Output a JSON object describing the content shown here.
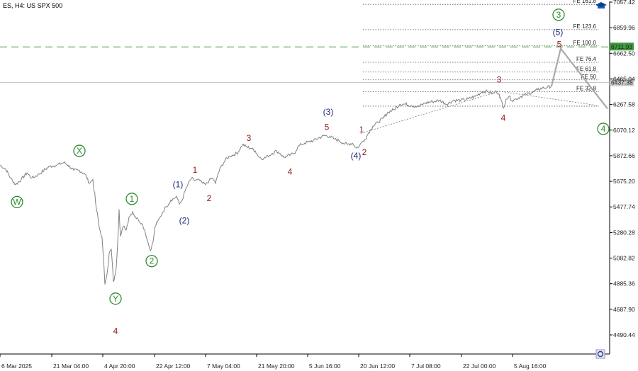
{
  "header": {
    "symbol": "ES",
    "timeframe": "H4",
    "description": "US SPX 500"
  },
  "colors": {
    "background": "#ffffff",
    "price_line": "#808080",
    "projection": "#a9a9a9",
    "wave_green": "#2e8b2e",
    "wave_navy": "#1f2a7a",
    "wave_red": "#8b1a1a",
    "level_green": "#3d9a3d",
    "current_price": "#a9a9a9",
    "fib_line": "#555555"
  },
  "chart_data": {
    "type": "line",
    "title": "ES, H4: US SPX 500",
    "x_tick_labels": [
      "6 Mar 2025",
      "21 Mar 04:00",
      "4 Apr 20:00",
      "22 Apr 12:00",
      "7 May 04:00",
      "21 May 20:00",
      "5 Jun 16:00",
      "20 Jun 12:00",
      "7 Jul 08:00",
      "22 Jul 00:00",
      "5 Aug 16:00"
    ],
    "y_tick_labels": [
      "7057.42",
      "6859.96",
      "6662.50",
      "6465.04",
      "6267.58",
      "6070.12",
      "5872.66",
      "5675.20",
      "5477.74",
      "5280.28",
      "5082.82",
      "4885.36",
      "4687.90",
      "4490.44"
    ],
    "ylim": [
      4420,
      7080
    ],
    "xlim": [
      0,
      860
    ],
    "grid": false,
    "series": [
      {
        "values": [
          [
            0,
            5800
          ],
          [
            8,
            5770
          ],
          [
            15,
            5700
          ],
          [
            22,
            5650
          ],
          [
            30,
            5690
          ],
          [
            38,
            5740
          ],
          [
            45,
            5700
          ],
          [
            55,
            5730
          ],
          [
            62,
            5760
          ],
          [
            70,
            5790
          ],
          [
            80,
            5800
          ],
          [
            90,
            5820
          ],
          [
            96,
            5800
          ],
          [
            104,
            5760
          ],
          [
            112,
            5760
          ],
          [
            120,
            5730
          ],
          [
            126,
            5660
          ],
          [
            131,
            5690
          ],
          [
            135,
            5500
          ],
          [
            140,
            5320
          ],
          [
            144,
            5240
          ],
          [
            148,
            4880
          ],
          [
            152,
            5000
          ],
          [
            154,
            5120
          ],
          [
            157,
            5150
          ],
          [
            160,
            4900
          ],
          [
            163,
            4960
          ],
          [
            165,
            5100
          ],
          [
            168,
            5460
          ],
          [
            170,
            5250
          ],
          [
            174,
            5330
          ],
          [
            178,
            5300
          ],
          [
            182,
            5400
          ],
          [
            187,
            5440
          ],
          [
            191,
            5400
          ],
          [
            195,
            5380
          ],
          [
            200,
            5350
          ],
          [
            204,
            5300
          ],
          [
            208,
            5220
          ],
          [
            212,
            5140
          ],
          [
            216,
            5210
          ],
          [
            219,
            5330
          ],
          [
            222,
            5360
          ],
          [
            226,
            5400
          ],
          [
            230,
            5440
          ],
          [
            234,
            5480
          ],
          [
            238,
            5500
          ],
          [
            241,
            5530
          ],
          [
            245,
            5540
          ],
          [
            249,
            5560
          ],
          [
            253,
            5500
          ],
          [
            257,
            5530
          ],
          [
            261,
            5600
          ],
          [
            265,
            5650
          ],
          [
            270,
            5700
          ],
          [
            274,
            5680
          ],
          [
            278,
            5690
          ],
          [
            282,
            5680
          ],
          [
            286,
            5660
          ],
          [
            290,
            5650
          ],
          [
            295,
            5680
          ],
          [
            300,
            5700
          ],
          [
            304,
            5660
          ],
          [
            308,
            5740
          ],
          [
            313,
            5800
          ],
          [
            318,
            5840
          ],
          [
            324,
            5870
          ],
          [
            330,
            5880
          ],
          [
            336,
            5900
          ],
          [
            342,
            5960
          ],
          [
            348,
            5940
          ],
          [
            354,
            5930
          ],
          [
            360,
            5910
          ],
          [
            366,
            5860
          ],
          [
            372,
            5850
          ],
          [
            378,
            5870
          ],
          [
            384,
            5890
          ],
          [
            390,
            5910
          ],
          [
            395,
            5890
          ],
          [
            400,
            5860
          ],
          [
            405,
            5870
          ],
          [
            410,
            5880
          ],
          [
            415,
            5890
          ],
          [
            420,
            5940
          ],
          [
            425,
            5960
          ],
          [
            430,
            5970
          ],
          [
            436,
            5980
          ],
          [
            442,
            5990
          ],
          [
            450,
            6010
          ],
          [
            458,
            6030
          ],
          [
            465,
            6020
          ],
          [
            472,
            6000
          ],
          [
            478,
            5990
          ],
          [
            484,
            5970
          ],
          [
            490,
            5960
          ],
          [
            497,
            5970
          ],
          [
            503,
            5930
          ],
          [
            507,
            5950
          ],
          [
            511,
            5980
          ],
          [
            515,
            6000
          ],
          [
            520,
            6050
          ],
          [
            526,
            6100
          ],
          [
            533,
            6130
          ],
          [
            540,
            6160
          ],
          [
            548,
            6210
          ],
          [
            556,
            6230
          ],
          [
            564,
            6270
          ],
          [
            572,
            6270
          ],
          [
            580,
            6260
          ],
          [
            590,
            6250
          ],
          [
            600,
            6280
          ],
          [
            610,
            6290
          ],
          [
            620,
            6300
          ],
          [
            630,
            6270
          ],
          [
            640,
            6300
          ],
          [
            650,
            6300
          ],
          [
            660,
            6310
          ],
          [
            670,
            6330
          ],
          [
            680,
            6365
          ],
          [
            688,
            6370
          ],
          [
            695,
            6350
          ],
          [
            700,
            6370
          ],
          [
            704,
            6350
          ],
          [
            707,
            6300
          ],
          [
            710,
            6240
          ],
          [
            714,
            6310
          ],
          [
            718,
            6330
          ],
          [
            722,
            6300
          ],
          [
            728,
            6310
          ],
          [
            735,
            6330
          ],
          [
            742,
            6345
          ],
          [
            750,
            6360
          ],
          [
            758,
            6380
          ],
          [
            765,
            6395
          ],
          [
            772,
            6400
          ],
          [
            778,
            6410
          ]
        ]
      }
    ],
    "projection": [
      [
        778,
        6410
      ],
      [
        791,
        6700
      ],
      [
        857,
        6235
      ]
    ],
    "triangle_lines": [
      [
        [
          509,
          6045
        ],
        [
          704,
          6370
        ]
      ],
      [
        [
          704,
          6370
        ],
        [
          843,
          6260
        ]
      ]
    ],
    "fib_levels": [
      {
        "label": "FE 161.8",
        "value": 7040
      },
      {
        "label": "FE 123.6",
        "value": 6845
      },
      {
        "label": "FE 100.0",
        "value": 6720
      },
      {
        "label": "FE 76.4",
        "value": 6593
      },
      {
        "label": "FE 61.8",
        "value": 6518
      },
      {
        "label": "FE 50",
        "value": 6458
      },
      {
        "label": "FE 32.8",
        "value": 6367
      },
      {
        "label": "",
        "value": 6255
      }
    ],
    "current_price": {
      "label": "6437.38",
      "value": 6437
    },
    "level_line": {
      "label": "6711.93",
      "value": 6712
    },
    "wave_labels": [
      {
        "text": "W",
        "x": 24,
        "y": 5515,
        "style": "green-circle"
      },
      {
        "text": "X",
        "x": 112,
        "y": 5910,
        "style": "green-circle"
      },
      {
        "text": "Y",
        "x": 163,
        "y": 4770,
        "style": "green-circle"
      },
      {
        "text": "1",
        "x": 186,
        "y": 5540,
        "style": "green-circle"
      },
      {
        "text": "2",
        "x": 214,
        "y": 5060,
        "style": "green-circle"
      },
      {
        "text": "3",
        "x": 788,
        "y": 6960,
        "style": "green-circle"
      },
      {
        "text": "4",
        "x": 851,
        "y": 6080,
        "style": "green-circle"
      },
      {
        "text": "4",
        "x": 163,
        "y": 4535,
        "style": "red-large"
      },
      {
        "text": "(1)",
        "x": 251,
        "y": 5655,
        "style": "navy"
      },
      {
        "text": "(2)",
        "x": 260,
        "y": 5375,
        "style": "navy"
      },
      {
        "text": "(3)",
        "x": 463,
        "y": 6215,
        "style": "navy"
      },
      {
        "text": "(4)",
        "x": 502,
        "y": 5875,
        "style": "navy"
      },
      {
        "text": "(5)",
        "x": 787,
        "y": 6830,
        "style": "navy"
      },
      {
        "text": "1",
        "x": 275,
        "y": 5765,
        "style": "red"
      },
      {
        "text": "2",
        "x": 295,
        "y": 5545,
        "style": "red"
      },
      {
        "text": "3",
        "x": 351,
        "y": 6010,
        "style": "red"
      },
      {
        "text": "4",
        "x": 409,
        "y": 5750,
        "style": "red"
      },
      {
        "text": "5",
        "x": 461,
        "y": 6095,
        "style": "red"
      },
      {
        "text": "1",
        "x": 510,
        "y": 6075,
        "style": "red"
      },
      {
        "text": "2",
        "x": 514,
        "y": 5900,
        "style": "red"
      },
      {
        "text": "3",
        "x": 704,
        "y": 6460,
        "style": "red"
      },
      {
        "text": "4",
        "x": 710,
        "y": 6165,
        "style": "red"
      },
      {
        "text": "5",
        "x": 789,
        "y": 6735,
        "style": "red"
      }
    ]
  }
}
